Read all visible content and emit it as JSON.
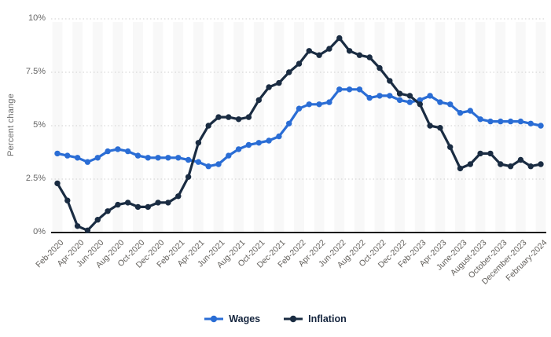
{
  "chart_data": {
    "type": "line",
    "title": "",
    "ylabel": "Percent change",
    "ylim": [
      0,
      10
    ],
    "yticks": [
      0,
      2.5,
      5,
      7.5,
      10
    ],
    "ytick_labels": [
      "0%",
      "2.5%",
      "5%",
      "7.5%",
      "10%"
    ],
    "grid": "horizontal dotted lines at 2.5% steps, solid black baseline at 0%",
    "plot_background": "alternating vertical light-gray/white month stripes",
    "legend_position": "bottom-center",
    "x_tick_every": 2,
    "x_tick_rotation": -45,
    "x_tick_labels": [
      "Feb-2020",
      "Apr-2020",
      "Jun-2020",
      "Aug-2020",
      "Oct-2020",
      "Dec-2020",
      "Feb-2021",
      "Apr-2021",
      "Jun-2021",
      "Aug-2021",
      "Oct-2021",
      "Dec-2021",
      "Feb-2022",
      "Apr-2022",
      "Jun-2022",
      "Aug-2022",
      "Oct-2022",
      "Dec-2022",
      "Feb-2023",
      "Apr-2023",
      "June-2023",
      "August-2023",
      "October-2023",
      "December-2023",
      "February-2024"
    ],
    "x": [
      "Feb-2020",
      "Mar-2020",
      "Apr-2020",
      "May-2020",
      "Jun-2020",
      "Jul-2020",
      "Aug-2020",
      "Sep-2020",
      "Oct-2020",
      "Nov-2020",
      "Dec-2020",
      "Jan-2021",
      "Feb-2021",
      "Mar-2021",
      "Apr-2021",
      "May-2021",
      "Jun-2021",
      "Jul-2021",
      "Aug-2021",
      "Sep-2021",
      "Oct-2021",
      "Nov-2021",
      "Dec-2021",
      "Jan-2022",
      "Feb-2022",
      "Mar-2022",
      "Apr-2022",
      "May-2022",
      "Jun-2022",
      "Jul-2022",
      "Aug-2022",
      "Sep-2022",
      "Oct-2022",
      "Nov-2022",
      "Dec-2022",
      "Jan-2023",
      "Feb-2023",
      "Mar-2023",
      "Apr-2023",
      "May-2023",
      "Jun-2023",
      "Jul-2023",
      "Aug-2023",
      "Sep-2023",
      "Oct-2023",
      "Nov-2023",
      "Dec-2023",
      "Jan-2024",
      "Feb-2024"
    ],
    "series": [
      {
        "name": "Wages",
        "color": "#2a6dd5",
        "values": [
          3.7,
          3.6,
          3.5,
          3.3,
          3.5,
          3.8,
          3.9,
          3.8,
          3.6,
          3.5,
          3.5,
          3.5,
          3.5,
          3.4,
          3.3,
          3.1,
          3.2,
          3.6,
          3.9,
          4.1,
          4.2,
          4.3,
          4.5,
          5.1,
          5.8,
          6.0,
          6.0,
          6.1,
          6.7,
          6.7,
          6.7,
          6.3,
          6.4,
          6.4,
          6.2,
          6.1,
          6.2,
          6.4,
          6.1,
          6.0,
          5.6,
          5.7,
          5.3,
          5.2,
          5.2,
          5.2,
          5.2,
          5.1,
          5.0
        ]
      },
      {
        "name": "Inflation",
        "color": "#1a2c42",
        "values": [
          2.3,
          1.5,
          0.3,
          0.1,
          0.6,
          1.0,
          1.3,
          1.4,
          1.2,
          1.2,
          1.4,
          1.4,
          1.7,
          2.6,
          4.2,
          5.0,
          5.4,
          5.4,
          5.3,
          5.4,
          6.2,
          6.8,
          7.0,
          7.5,
          7.9,
          8.5,
          8.3,
          8.6,
          9.1,
          8.5,
          8.3,
          8.2,
          7.7,
          7.1,
          6.5,
          6.4,
          6.0,
          5.0,
          4.9,
          4.0,
          3.0,
          3.2,
          3.7,
          3.7,
          3.2,
          3.1,
          3.4,
          3.1,
          3.2
        ]
      }
    ]
  },
  "styles": {
    "background": "#ffffff",
    "stripe": "#f8f8f8",
    "gridline": "#cfcfcf",
    "axis_line": "#1a1a1a",
    "tick_text": "#666666",
    "legend_text": "#15253e"
  }
}
